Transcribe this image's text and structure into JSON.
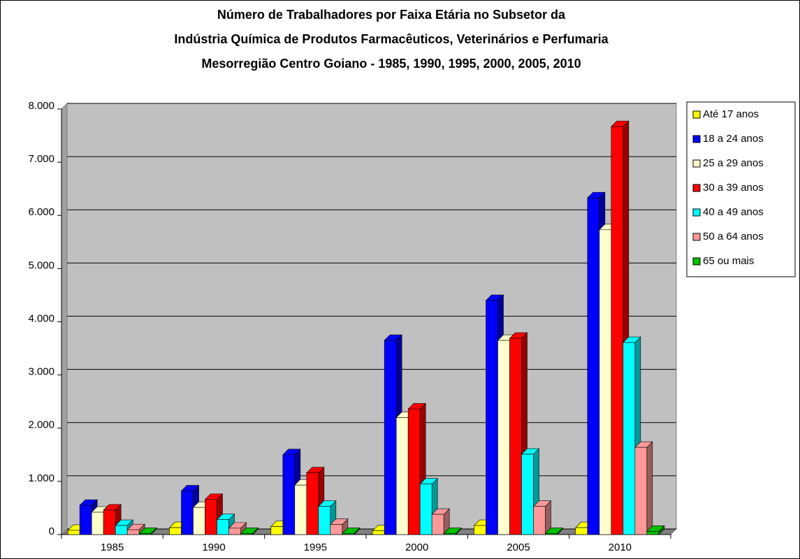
{
  "chart_data": {
    "type": "bar3d",
    "title": [
      "Número de Trabalhadores por Faixa Etária no Subsetor da",
      "Indústria Química de Produtos Farmacêuticos, Veterinários e Perfumaria",
      "Mesorregião Centro Goiano - 1985, 1990, 1995, 2000, 2005, 2010"
    ],
    "categories": [
      "1985",
      "1990",
      "1995",
      "2000",
      "2005",
      "2010"
    ],
    "series": [
      {
        "name": "Até 17 anos",
        "color": "#ffff00",
        "values": [
          80,
          130,
          150,
          70,
          170,
          130
        ]
      },
      {
        "name": "18 a 24 anos",
        "color": "#0000ff",
        "values": [
          550,
          820,
          1500,
          3650,
          4400,
          6330
        ]
      },
      {
        "name": "25 a 29 anos",
        "color": "#ffffcc",
        "values": [
          420,
          510,
          930,
          2200,
          3650,
          5730
        ]
      },
      {
        "name": "30 a 39 anos",
        "color": "#ff0000",
        "values": [
          460,
          660,
          1160,
          2360,
          3690,
          7670
        ]
      },
      {
        "name": "40 a 49 anos",
        "color": "#00ffff",
        "values": [
          170,
          280,
          530,
          950,
          1510,
          3610
        ]
      },
      {
        "name": "50 a 64 anos",
        "color": "#ff9999",
        "values": [
          90,
          120,
          190,
          380,
          530,
          1640
        ]
      },
      {
        "name": "65 ou mais",
        "color": "#00c000",
        "values": [
          20,
          20,
          20,
          20,
          20,
          60
        ]
      }
    ],
    "ylim": [
      0,
      8000
    ],
    "yticks": [
      0,
      {
        "value": 1000,
        "label": "1.000"
      },
      {
        "value": 2000,
        "label": "2.000"
      },
      {
        "value": 3000,
        "label": "3.000"
      },
      {
        "value": 4000,
        "label": "4.000"
      },
      {
        "value": 5000,
        "label": "5.000"
      },
      {
        "value": 6000,
        "label": "6.000"
      },
      {
        "value": 7000,
        "label": "7.000"
      },
      {
        "value": 8000,
        "label": "8.000"
      }
    ],
    "grid": true,
    "legend": "right"
  }
}
